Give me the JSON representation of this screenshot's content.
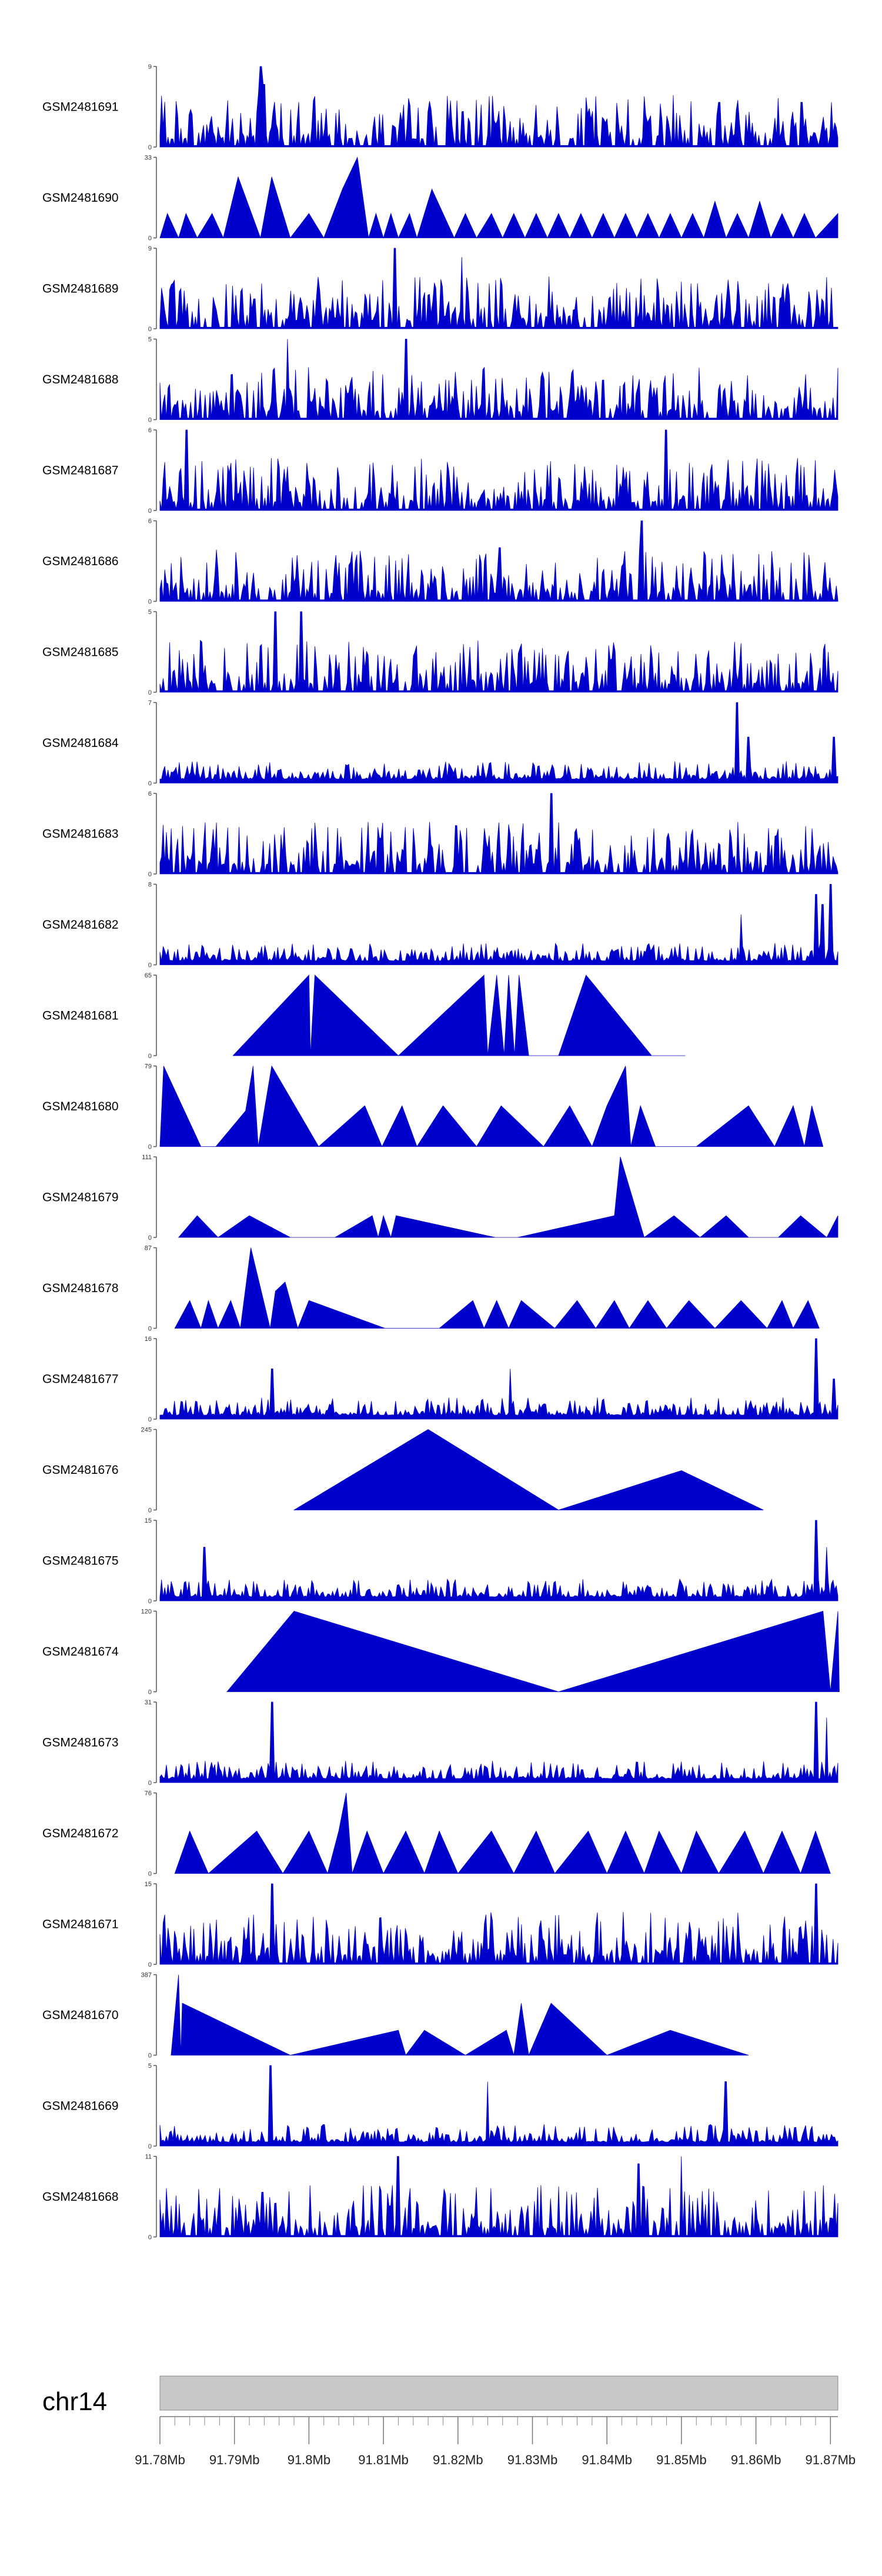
{
  "chart_data": {
    "type": "area",
    "title": "",
    "xlabel": "",
    "ylabel": "",
    "xlim": [
      91.78,
      91.871
    ],
    "x_unit": "Mb",
    "x_ticks": [
      "91.78Mb",
      "91.79Mb",
      "91.8Mb",
      "91.81Mb",
      "91.82Mb",
      "91.83Mb",
      "91.84Mb",
      "91.85Mb",
      "91.86Mb",
      "91.87Mb"
    ],
    "chromosome": "chr14",
    "series": [
      {
        "name": "GSM2481691",
        "ymax": "9",
        "y0": "0",
        "kind": "dense",
        "spikes": [
          [
            91.7936,
            9
          ],
          [
            91.7933,
            6
          ],
          [
            91.794,
            7
          ],
          [
            91.8551,
            5
          ],
          [
            91.8662,
            5
          ]
        ]
      },
      {
        "name": "GSM2481690",
        "ymax": "33",
        "y0": "0",
        "kind": "peaks",
        "points": [
          [
            91.78,
            0
          ],
          [
            91.781,
            10
          ],
          [
            91.7825,
            0
          ],
          [
            91.7835,
            10
          ],
          [
            91.785,
            0
          ],
          [
            91.787,
            10
          ],
          [
            91.7885,
            0
          ],
          [
            91.7905,
            25
          ],
          [
            91.7935,
            0
          ],
          [
            91.795,
            25
          ],
          [
            91.7975,
            0
          ],
          [
            91.8,
            10
          ],
          [
            91.802,
            0
          ],
          [
            91.8045,
            20
          ],
          [
            91.8065,
            33
          ],
          [
            91.808,
            0
          ],
          [
            91.809,
            10
          ],
          [
            91.81,
            0
          ],
          [
            91.811,
            10
          ],
          [
            91.812,
            0
          ],
          [
            91.8135,
            10
          ],
          [
            91.8145,
            0
          ],
          [
            91.8165,
            20
          ],
          [
            91.8195,
            0
          ],
          [
            91.821,
            10
          ],
          [
            91.8225,
            0
          ],
          [
            91.8245,
            10
          ],
          [
            91.826,
            0
          ],
          [
            91.8275,
            10
          ],
          [
            91.829,
            0
          ],
          [
            91.8305,
            10
          ],
          [
            91.832,
            0
          ],
          [
            91.8335,
            10
          ],
          [
            91.835,
            0
          ],
          [
            91.8365,
            10
          ],
          [
            91.838,
            0
          ],
          [
            91.8395,
            10
          ],
          [
            91.841,
            0
          ],
          [
            91.8425,
            10
          ],
          [
            91.844,
            0
          ],
          [
            91.8455,
            10
          ],
          [
            91.847,
            0
          ],
          [
            91.8485,
            10
          ],
          [
            91.85,
            0
          ],
          [
            91.8515,
            10
          ],
          [
            91.853,
            0
          ],
          [
            91.8545,
            15
          ],
          [
            91.856,
            0
          ],
          [
            91.8575,
            10
          ],
          [
            91.859,
            0
          ],
          [
            91.8605,
            15
          ],
          [
            91.862,
            0
          ],
          [
            91.8635,
            10
          ],
          [
            91.865,
            0
          ],
          [
            91.8665,
            10
          ],
          [
            91.868,
            0
          ],
          [
            91.871,
            10
          ]
        ]
      },
      {
        "name": "GSM2481689",
        "ymax": "9",
        "y0": "0",
        "kind": "dense",
        "spikes": [
          [
            91.8115,
            9
          ],
          [
            91.8205,
            8
          ]
        ]
      },
      {
        "name": "GSM2481688",
        "ymax": "5",
        "y0": "0",
        "kind": "dense",
        "spikes": [
          [
            91.7971,
            5
          ],
          [
            91.8131,
            5
          ]
        ]
      },
      {
        "name": "GSM2481687",
        "ymax": "6",
        "y0": "0",
        "kind": "dense",
        "spikes": [
          [
            91.7835,
            6
          ],
          [
            91.848,
            6
          ]
        ]
      },
      {
        "name": "GSM2481686",
        "ymax": "6",
        "y0": "0",
        "kind": "dense",
        "spikes": [
          [
            91.8446,
            6
          ],
          [
            91.8256,
            4
          ]
        ]
      },
      {
        "name": "GSM2481685",
        "ymax": "5",
        "y0": "0",
        "kind": "dense",
        "spikes": [
          [
            91.7955,
            5
          ],
          [
            91.799,
            5
          ]
        ]
      },
      {
        "name": "GSM2481684",
        "ymax": "7",
        "y0": "0",
        "kind": "dense_low",
        "spikes": [
          [
            91.8575,
            7
          ],
          [
            91.859,
            4
          ],
          [
            91.8705,
            4
          ]
        ]
      },
      {
        "name": "GSM2481683",
        "ymax": "6",
        "y0": "0",
        "kind": "dense",
        "spikes": [
          [
            91.8325,
            6
          ]
        ]
      },
      {
        "name": "GSM2481682",
        "ymax": "8",
        "y0": "0",
        "kind": "dense_low",
        "spikes": [
          [
            91.858,
            5
          ],
          [
            91.868,
            7
          ],
          [
            91.87,
            8
          ],
          [
            91.869,
            6
          ]
        ]
      },
      {
        "name": "GSM2481681",
        "ymax": "65",
        "y0": "0",
        "kind": "peaks",
        "points": [
          [
            91.7898,
            0
          ],
          [
            91.8,
            65
          ],
          [
            91.8002,
            0
          ],
          [
            91.8008,
            65
          ],
          [
            91.812,
            0
          ],
          [
            91.8235,
            65
          ],
          [
            91.824,
            0
          ],
          [
            91.8252,
            65
          ],
          [
            91.8262,
            0
          ],
          [
            91.8268,
            65
          ],
          [
            91.8276,
            0
          ],
          [
            91.8282,
            65
          ],
          [
            91.8295,
            0
          ],
          [
            91.8335,
            0
          ],
          [
            91.8372,
            65
          ],
          [
            91.846,
            0
          ],
          [
            91.8505,
            0
          ]
        ]
      },
      {
        "name": "GSM2481680",
        "ymax": "79",
        "y0": "0",
        "kind": "peaks",
        "points": [
          [
            91.78,
            0
          ],
          [
            91.7805,
            79
          ],
          [
            91.7855,
            0
          ],
          [
            91.7875,
            0
          ],
          [
            91.7915,
            35
          ],
          [
            91.7925,
            79
          ],
          [
            91.7932,
            0
          ],
          [
            91.795,
            79
          ],
          [
            91.8013,
            0
          ],
          [
            91.8075,
            40
          ],
          [
            91.8098,
            0
          ],
          [
            91.8125,
            40
          ],
          [
            91.8145,
            0
          ],
          [
            91.818,
            40
          ],
          [
            91.8225,
            0
          ],
          [
            91.8258,
            40
          ],
          [
            91.8315,
            0
          ],
          [
            91.835,
            40
          ],
          [
            91.838,
            0
          ],
          [
            91.84,
            40
          ],
          [
            91.8425,
            79
          ],
          [
            91.8432,
            0
          ],
          [
            91.8445,
            40
          ],
          [
            91.8465,
            0
          ],
          [
            91.852,
            0
          ],
          [
            91.859,
            40
          ],
          [
            91.8625,
            0
          ],
          [
            91.865,
            40
          ],
          [
            91.8665,
            0
          ],
          [
            91.8675,
            40
          ],
          [
            91.869,
            0
          ]
        ]
      },
      {
        "name": "GSM2481679",
        "ymax": "111",
        "y0": "0",
        "kind": "peaks",
        "points": [
          [
            91.7825,
            0
          ],
          [
            91.785,
            30
          ],
          [
            91.7878,
            0
          ],
          [
            91.792,
            30
          ],
          [
            91.7975,
            0
          ],
          [
            91.8035,
            0
          ],
          [
            91.8085,
            30
          ],
          [
            91.8093,
            0
          ],
          [
            91.81,
            30
          ],
          [
            91.811,
            0
          ],
          [
            91.8117,
            30
          ],
          [
            91.825,
            0
          ],
          [
            91.828,
            0
          ],
          [
            91.841,
            30
          ],
          [
            91.8418,
            111
          ],
          [
            91.845,
            0
          ],
          [
            91.849,
            30
          ],
          [
            91.8525,
            0
          ],
          [
            91.856,
            30
          ],
          [
            91.859,
            0
          ],
          [
            91.863,
            0
          ],
          [
            91.866,
            30
          ],
          [
            91.8695,
            0
          ],
          [
            91.871,
            30
          ]
        ]
      },
      {
        "name": "GSM2481678",
        "ymax": "87",
        "y0": "0",
        "kind": "peaks",
        "points": [
          [
            91.782,
            0
          ],
          [
            91.784,
            30
          ],
          [
            91.7855,
            0
          ],
          [
            91.7865,
            30
          ],
          [
            91.7878,
            0
          ],
          [
            91.7895,
            30
          ],
          [
            91.7908,
            0
          ],
          [
            91.7922,
            87
          ],
          [
            91.7948,
            0
          ],
          [
            91.7955,
            40
          ],
          [
            91.7968,
            50
          ],
          [
            91.7985,
            0
          ],
          [
            91.8,
            30
          ],
          [
            91.8102,
            0
          ],
          [
            91.8175,
            0
          ],
          [
            91.822,
            30
          ],
          [
            91.8235,
            0
          ],
          [
            91.8252,
            30
          ],
          [
            91.8268,
            0
          ],
          [
            91.8285,
            30
          ],
          [
            91.833,
            0
          ],
          [
            91.836,
            30
          ],
          [
            91.8385,
            0
          ],
          [
            91.841,
            30
          ],
          [
            91.843,
            0
          ],
          [
            91.8455,
            30
          ],
          [
            91.848,
            0
          ],
          [
            91.851,
            30
          ],
          [
            91.8545,
            0
          ],
          [
            91.858,
            30
          ],
          [
            91.8615,
            0
          ],
          [
            91.8635,
            30
          ],
          [
            91.865,
            0
          ],
          [
            91.867,
            30
          ],
          [
            91.8685,
            0
          ]
        ]
      },
      {
        "name": "GSM2481677",
        "ymax": "16",
        "y0": "0",
        "kind": "dense_low",
        "spikes": [
          [
            91.795,
            10
          ],
          [
            91.827,
            10
          ],
          [
            91.868,
            16
          ],
          [
            91.8705,
            8
          ]
        ]
      },
      {
        "name": "GSM2481676",
        "ymax": "245",
        "y0": "0",
        "kind": "peaks",
        "points": [
          [
            91.798,
            0
          ],
          [
            91.816,
            245
          ],
          [
            91.8335,
            0
          ],
          [
            91.85,
            120
          ],
          [
            91.861,
            0
          ]
        ]
      },
      {
        "name": "GSM2481675",
        "ymax": "15",
        "y0": "0",
        "kind": "dense_low",
        "spikes": [
          [
            91.786,
            10
          ],
          [
            91.868,
            15
          ],
          [
            91.8695,
            10
          ]
        ]
      },
      {
        "name": "GSM2481674",
        "ymax": "120",
        "y0": "0",
        "kind": "peaks",
        "points": [
          [
            91.789,
            0
          ],
          [
            91.798,
            120
          ],
          [
            91.8335,
            0
          ],
          [
            91.869,
            120
          ],
          [
            91.87,
            0
          ],
          [
            91.871,
            120
          ],
          [
            91.8712,
            0
          ]
        ]
      },
      {
        "name": "GSM2481673",
        "ymax": "31",
        "y0": "0",
        "kind": "dense_low",
        "spikes": [
          [
            91.795,
            31
          ],
          [
            91.868,
            31
          ],
          [
            91.8695,
            25
          ]
        ]
      },
      {
        "name": "GSM2481672",
        "ymax": "76",
        "y0": "0",
        "kind": "peaks",
        "points": [
          [
            91.782,
            0
          ],
          [
            91.784,
            40
          ],
          [
            91.7865,
            0
          ],
          [
            91.793,
            40
          ],
          [
            91.7965,
            0
          ],
          [
            91.8,
            40
          ],
          [
            91.8025,
            0
          ],
          [
            91.804,
            40
          ],
          [
            91.805,
            76
          ],
          [
            91.8058,
            0
          ],
          [
            91.8078,
            40
          ],
          [
            91.81,
            0
          ],
          [
            91.813,
            40
          ],
          [
            91.8155,
            0
          ],
          [
            91.8175,
            40
          ],
          [
            91.82,
            0
          ],
          [
            91.8245,
            40
          ],
          [
            91.8275,
            0
          ],
          [
            91.8305,
            40
          ],
          [
            91.833,
            0
          ],
          [
            91.8375,
            40
          ],
          [
            91.84,
            0
          ],
          [
            91.8425,
            40
          ],
          [
            91.845,
            0
          ],
          [
            91.847,
            40
          ],
          [
            91.85,
            0
          ],
          [
            91.852,
            40
          ],
          [
            91.855,
            0
          ],
          [
            91.8585,
            40
          ],
          [
            91.861,
            0
          ],
          [
            91.8635,
            40
          ],
          [
            91.866,
            0
          ],
          [
            91.868,
            40
          ],
          [
            91.87,
            0
          ]
        ]
      },
      {
        "name": "GSM2481671",
        "ymax": "15",
        "y0": "0",
        "kind": "dense",
        "spikes": [
          [
            91.795,
            15
          ],
          [
            91.868,
            15
          ]
        ]
      },
      {
        "name": "GSM2481670",
        "ymax": "387",
        "y0": "0",
        "kind": "peaks",
        "points": [
          [
            91.7815,
            0
          ],
          [
            91.7825,
            387
          ],
          [
            91.7828,
            0
          ],
          [
            91.783,
            250
          ],
          [
            91.7975,
            0
          ],
          [
            91.812,
            120
          ],
          [
            91.813,
            0
          ],
          [
            91.8155,
            120
          ],
          [
            91.821,
            0
          ],
          [
            91.8265,
            120
          ],
          [
            91.8275,
            0
          ],
          [
            91.8285,
            250
          ],
          [
            91.8295,
            0
          ],
          [
            91.8325,
            250
          ],
          [
            91.84,
            0
          ],
          [
            91.8485,
            120
          ],
          [
            91.859,
            0
          ]
        ]
      },
      {
        "name": "GSM2481669",
        "ymax": "5",
        "y0": "0",
        "kind": "dense_low",
        "spikes": [
          [
            91.7948,
            5
          ],
          [
            91.824,
            4
          ],
          [
            91.856,
            4
          ]
        ]
      },
      {
        "name": "GSM2481668",
        "ymax": "11",
        "y0": "0",
        "kind": "dense",
        "spikes": [
          [
            91.812,
            11
          ],
          [
            91.8442,
            10
          ],
          [
            91.85,
            11
          ]
        ]
      }
    ]
  }
}
